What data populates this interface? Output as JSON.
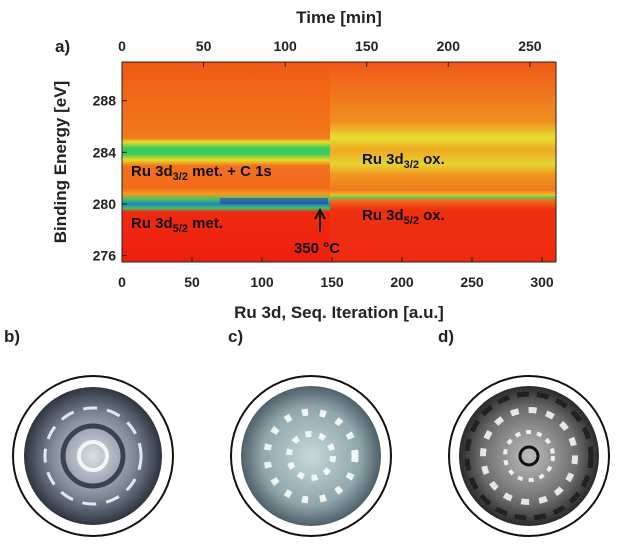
{
  "chart_data": {
    "type": "heatmap",
    "panel_label": "a)",
    "x2label": "Time [min]",
    "xlabel": "Ru 3d, Seq. Iteration [a.u.]",
    "ylabel": "Binding Energy [eV]",
    "xlim": [
      0,
      310
    ],
    "xticks": [
      0,
      50,
      100,
      150,
      200,
      250,
      300
    ],
    "x2lim": [
      0,
      266
    ],
    "x2ticks": [
      0,
      50,
      100,
      150,
      200,
      250
    ],
    "ylim": [
      275.5,
      291
    ],
    "yticks": [
      276,
      280,
      284,
      288
    ],
    "annotations": [
      {
        "text": "Ru 3d",
        "sub": "3/2",
        "tail": " met. + C 1s"
      },
      {
        "text": "Ru 3d",
        "sub": "5/2",
        "tail": " met."
      },
      {
        "text": "Ru 3d",
        "sub": "3/2",
        "tail": " ox."
      },
      {
        "text": "Ru 3d",
        "sub": "5/2",
        "tail": " ox."
      },
      {
        "text": "350 °C"
      }
    ]
  },
  "panel_labels": [
    "b)",
    "c)",
    "d)"
  ]
}
